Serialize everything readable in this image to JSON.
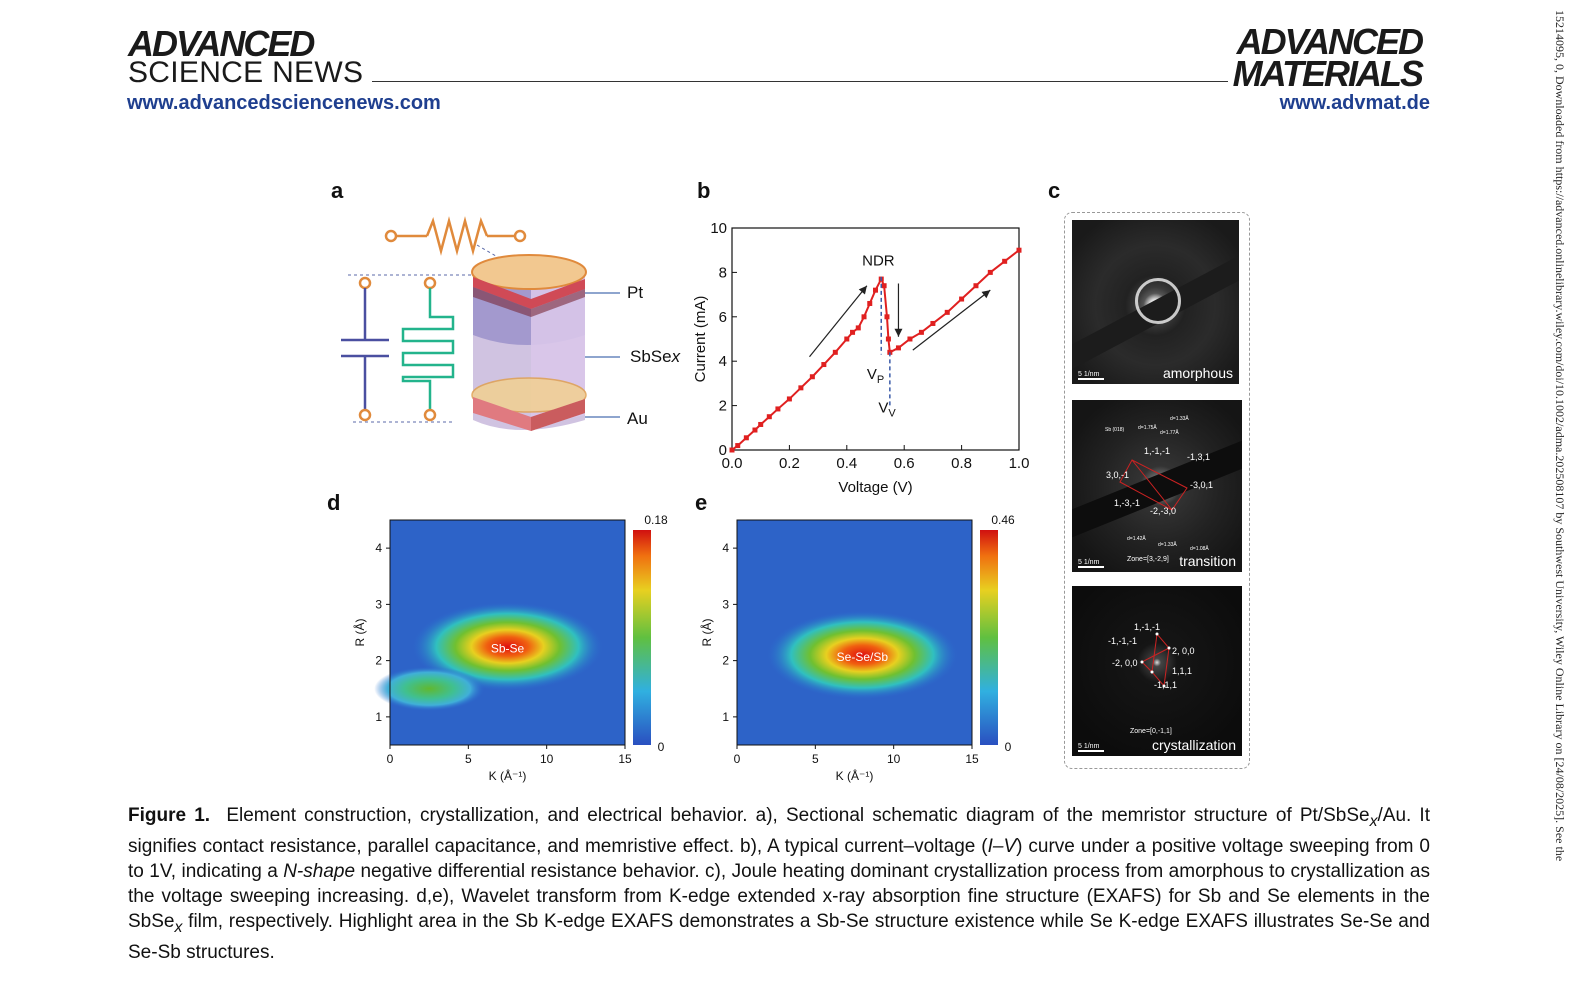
{
  "header": {
    "left_brand_line1": "ADVANCED",
    "left_brand_line2": "SCIENCE NEWS",
    "left_url": "www.advancedsciencenews.com",
    "right_brand_line1": "ADVANCED",
    "right_brand_line2": "MATERIALS",
    "right_url": "www.advmat.de"
  },
  "side_note": "15214095, 0, Downloaded from https://advanced.onlinelibrary.wiley.com/doi/10.1002/adma.202508107 by Southwest University, Wiley Online Library on [24/08/2025]. See the",
  "panels": {
    "a": "a",
    "b": "b",
    "c": "c",
    "d": "d",
    "e": "e"
  },
  "panel_a": {
    "label_pt": "Pt",
    "label_sbse": "SbSe",
    "label_sbse_sub": "x",
    "label_au": "Au"
  },
  "panel_b": {
    "annotation_ndr": "NDR",
    "annotation_vp": "V",
    "annotation_vp_sub": "P",
    "annotation_vv": "V",
    "annotation_vv_sub": "V"
  },
  "panel_c": {
    "img1_label": "amorphous",
    "img2_label": "transition",
    "img3_label": "crystallization",
    "img1_scale": "5 1/nm",
    "img2_scale": "5 1/nm",
    "img3_scale": "5 1/nm",
    "img2_zone": "Zone=[3,-2,9]",
    "img3_zone": "Zone=[0,-1,1]",
    "img2_spots": [
      "1,-1,-1",
      "-1,3,1",
      "3,0,-1",
      "-3,0,1",
      "1,-3,-1",
      "-2,-3,0"
    ],
    "img2_dspacings": [
      "Sb (018)",
      "d=1.75Å",
      "d=1.77Å",
      "d=1.33Å",
      "d=1.42Å",
      "d=1.33Å",
      "d=1.08Å"
    ],
    "img3_spots": [
      "1,-1,-1",
      "-1,-1,-1",
      "2, 0,0",
      "-2, 0,0",
      "1,1,1",
      "-1,1,1"
    ]
  },
  "chart_data": [
    {
      "type": "line",
      "xlabel": "Voltage (V)",
      "ylabel": "Current (mA)",
      "xlim": [
        0.0,
        1.0
      ],
      "ylim": [
        0,
        10
      ],
      "xticks": [
        "0.0",
        "0.2",
        "0.4",
        "0.6",
        "0.8",
        "1.0"
      ],
      "yticks": [
        "0",
        "2",
        "4",
        "6",
        "8",
        "10"
      ],
      "color": "#e02020",
      "series": [
        {
          "x": [
            0.0,
            0.02,
            0.05,
            0.08,
            0.1,
            0.13,
            0.16,
            0.2,
            0.24,
            0.28,
            0.32,
            0.36,
            0.4,
            0.42,
            0.44,
            0.46,
            0.48,
            0.5,
            0.52,
            0.53,
            0.54,
            0.545,
            0.55,
            0.58,
            0.62,
            0.66,
            0.7,
            0.75,
            0.8,
            0.85,
            0.9,
            0.95,
            1.0
          ],
          "y": [
            0.0,
            0.2,
            0.55,
            0.9,
            1.15,
            1.5,
            1.85,
            2.3,
            2.8,
            3.3,
            3.85,
            4.4,
            5.0,
            5.3,
            5.5,
            6.0,
            6.6,
            7.2,
            7.7,
            7.4,
            6.0,
            5.0,
            4.4,
            4.6,
            5.0,
            5.3,
            5.7,
            6.2,
            6.8,
            7.4,
            8.0,
            8.5,
            9.0
          ]
        }
      ]
    },
    {
      "type": "heatmap",
      "xlabel": "K (Å⁻¹)",
      "ylabel": "R (Å)",
      "xlim": [
        0,
        15
      ],
      "ylim": [
        0.5,
        4.5
      ],
      "xticks": [
        "0",
        "5",
        "10",
        "15"
      ],
      "yticks": [
        "1",
        "2",
        "3",
        "4"
      ],
      "colorbar": {
        "max": "0.18",
        "min": "0"
      },
      "annotation": "Sb-Se",
      "peaks": [
        {
          "k": 7.5,
          "r": 2.25,
          "intensity": 0.18
        },
        {
          "k": 2.5,
          "r": 1.5,
          "intensity": 0.08
        }
      ]
    },
    {
      "type": "heatmap",
      "xlabel": "K (Å⁻¹)",
      "ylabel": "R (Å)",
      "xlim": [
        0,
        15
      ],
      "ylim": [
        0.5,
        4.5
      ],
      "xticks": [
        "0",
        "5",
        "10",
        "15"
      ],
      "yticks": [
        "1",
        "2",
        "3",
        "4"
      ],
      "colorbar": {
        "max": "0.46",
        "min": "0"
      },
      "annotation": "Se-Se/Sb",
      "peaks": [
        {
          "k": 8.0,
          "r": 2.1,
          "intensity": 0.46
        }
      ]
    }
  ],
  "caption": {
    "figure_label": "Figure 1.",
    "p1": "Element construction, crystallization, and electrical behavior. a), Sectional schematic diagram of the memristor structure of Pt/SbSe",
    "p1_sub": "x",
    "p2": "/Au. It signifies contact resistance, parallel capacitance, and memristive effect. b), A typical current–voltage (",
    "p2_iv": "I–V",
    "p3": ") curve under a positive voltage sweeping from 0 to 1V, indicating a ",
    "p3_em": "N-shape",
    "p4": " negative differential resistance behavior. c), Joule heating dominant crystallization process from amorphous to crystallization as the voltage sweeping increasing. d,e), Wavelet transform from K-edge extended x-ray absorption fine structure (EXAFS) for Sb and Se elements in the SbSe",
    "p4_sub": "x",
    "p5": " film, respectively. Highlight area in the Sb K-edge EXAFS demonstrates a Sb-Se structure existence while Se K-edge EXAFS illustrates Se-Se and Se-Sb structures."
  }
}
